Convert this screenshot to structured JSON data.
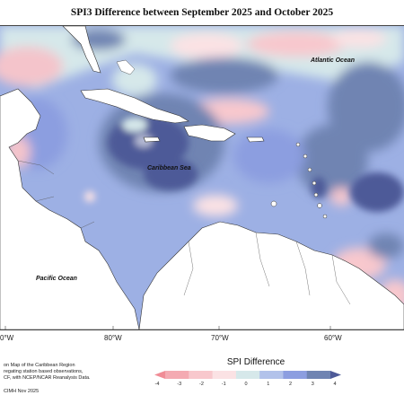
{
  "title": "SPI3 Difference between September 2025 and October 2025",
  "labels": {
    "atlantic": "Atlantic Ocean",
    "caribbean": "Caribbean Sea",
    "pacific": "Pacific Ocean"
  },
  "longitudes": [
    "0°W",
    "80°W",
    "70°W",
    "60°W"
  ],
  "footnote": {
    "line1": "on Map of the Caribbean Region",
    "line2": "regating station based observations,",
    "line3": "CF, with NCEP/NCAR Reanalysis Data.",
    "credit": "CIMH Nov 2025"
  },
  "legend": {
    "title": "SPI Difference",
    "ticks": [
      "-4",
      "-3",
      "-2",
      "-1",
      "0",
      "1",
      "2",
      "3",
      "4"
    ],
    "colors": [
      "#f08c96",
      "#f4aab2",
      "#f8c8cd",
      "#fbe2e4",
      "#d6e8ea",
      "#b2c2ea",
      "#8c9ee0",
      "#6f84b2",
      "#4e5a98"
    ]
  },
  "colors": {
    "land": "#ffffff",
    "coast": "#333333",
    "neutral": "#d6e8ea",
    "base_blue": "#8c9ee0"
  }
}
